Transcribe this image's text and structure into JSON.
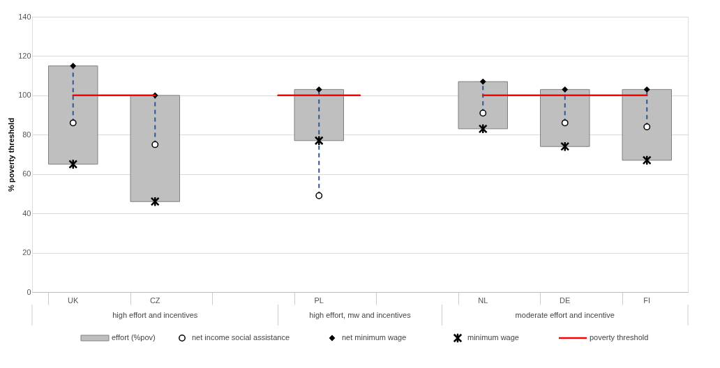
{
  "chart_data": {
    "type": "bar",
    "ylabel": "% poverty threshold",
    "categories": [
      "UK",
      "CZ",
      null,
      "PL",
      null,
      "NL",
      "DE",
      "FI"
    ],
    "series": [
      {
        "name": "effort (%pov)",
        "type": "bar",
        "color": "#bfbfbf",
        "base": [
          65,
          46,
          null,
          77,
          null,
          83,
          74,
          67
        ],
        "values": [
          50,
          54,
          null,
          26,
          null,
          24,
          29,
          36
        ]
      },
      {
        "type": "line",
        "line_style": "dashed",
        "color": "#2f5597",
        "x": [
          "UK",
          "UK"
        ],
        "values": [
          86,
          115
        ]
      },
      {
        "type": "line",
        "line_style": "dashed",
        "color": "#2f5597",
        "x": [
          "CZ",
          "CZ"
        ],
        "values": [
          75,
          100
        ]
      },
      {
        "type": "line",
        "line_style": "dashed",
        "color": "#2f5597",
        "x": [
          "PL",
          "PL"
        ],
        "values": [
          49,
          103
        ]
      },
      {
        "type": "line",
        "line_style": "dashed",
        "color": "#2f5597",
        "x": [
          "NL",
          "NL"
        ],
        "values": [
          91,
          107
        ]
      },
      {
        "type": "line",
        "line_style": "dashed",
        "color": "#2f5597",
        "x": [
          "DE",
          "DE"
        ],
        "values": [
          86,
          103
        ]
      },
      {
        "type": "line",
        "line_style": "dashed",
        "color": "#2f5597",
        "x": [
          "FI",
          "FI"
        ],
        "values": [
          84,
          103
        ]
      },
      {
        "name": "net income social assistance",
        "type": "scatter",
        "marker": "circle",
        "color": "#ffffff",
        "values": [
          86,
          75,
          null,
          49,
          null,
          91,
          86,
          84
        ]
      },
      {
        "name": "net minimum wage",
        "type": "scatter",
        "marker": "diamond",
        "color": "#000000",
        "values": [
          115,
          100,
          null,
          103,
          null,
          107,
          103,
          103
        ]
      },
      {
        "name": "minimum wage",
        "type": "scatter",
        "marker": "cross",
        "color": "#000000",
        "values": [
          65,
          46,
          null,
          77,
          null,
          83,
          74,
          67
        ]
      },
      {
        "name": "poverty threshold",
        "type": "line",
        "color": "#ff0000",
        "values": [
          100,
          100,
          null,
          100,
          null,
          100,
          100,
          100
        ]
      }
    ],
    "annotations": [
      "high effort and incentives",
      "high effort, mw and incentives",
      "moderate effort and incentive"
    ],
    "ylim": [
      0,
      140
    ],
    "yticks": [
      0,
      20,
      40,
      60,
      80,
      100,
      120,
      140
    ],
    "grid": "y",
    "legend": "bottom"
  }
}
